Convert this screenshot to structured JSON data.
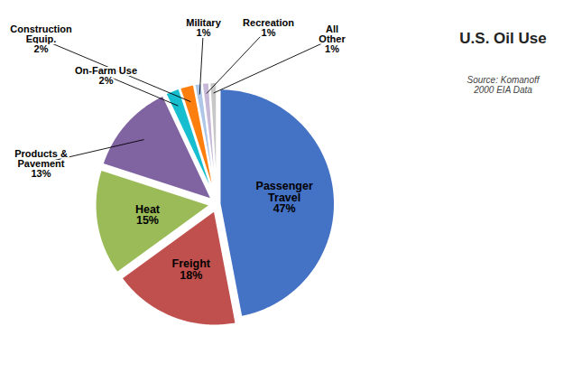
{
  "chart_data": {
    "type": "pie",
    "title": "U.S. Oil Use",
    "subtitle": "Source: Komanoff\n2000 EIA Data",
    "categories": [
      "Passenger\nTravel",
      "Freight",
      "Heat",
      "Products &\nPavement",
      "On-Farm Use",
      "Construction\nEquip.",
      "Military",
      "Recreation",
      "All\nOther"
    ],
    "values": [
      47,
      18,
      15,
      13,
      2,
      2,
      1,
      1,
      1
    ],
    "value_labels": [
      "47%",
      "18%",
      "15%",
      "13%",
      "2%",
      "2%",
      "1%",
      "1%",
      "1%"
    ],
    "colors": [
      "#4472C4",
      "#C0504D",
      "#9BBB59",
      "#8064A2",
      "#17BECF",
      "#FF7F0E",
      "#AEC7E8",
      "#C7B8D8",
      "#C7C7C7"
    ],
    "data_labels": true
  }
}
